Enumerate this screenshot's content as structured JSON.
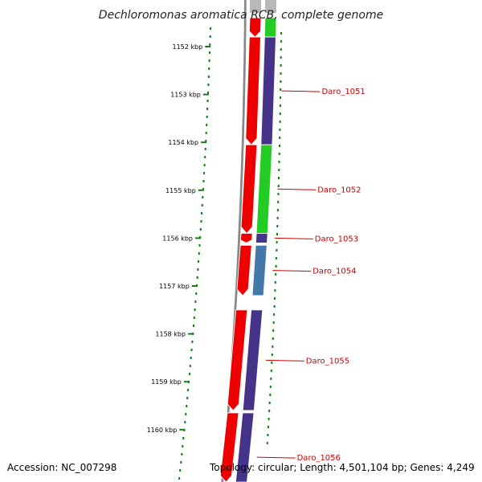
{
  "title": "Dechloromonas aromatica RCB, complete genome",
  "footer": {
    "accession": "Accession: NC_007298",
    "topology": "Topology: circular; Length: 4,501,104 bp; Genes: 4,249"
  },
  "colors": {
    "forward_strand": "#ee0000",
    "cog_green": "#22cc22",
    "cog_navy": "#443388",
    "cog_steel": "#4477aa",
    "ruler": "#1a7a1a",
    "label": "#cc0000",
    "backbone": "#888888"
  },
  "ticks": [
    {
      "label": "1152 kbp",
      "kbp": 1152
    },
    {
      "label": "1153 kbp",
      "kbp": 1153
    },
    {
      "label": "1154 kbp",
      "kbp": 1154
    },
    {
      "label": "1155 kbp",
      "kbp": 1155
    },
    {
      "label": "1156 kbp",
      "kbp": 1156
    },
    {
      "label": "1157 kbp",
      "kbp": 1157
    },
    {
      "label": "1158 kbp",
      "kbp": 1158
    },
    {
      "label": "1159 kbp",
      "kbp": 1159
    },
    {
      "label": "1160 kbp",
      "kbp": 1160
    }
  ],
  "genes": [
    {
      "name": "",
      "start": 1151.4,
      "end": 1151.8,
      "cog": "cog_green"
    },
    {
      "name": "Daro_1051",
      "start": 1151.8,
      "end": 1154.05,
      "cog": "cog_navy"
    },
    {
      "name": "Daro_1052",
      "start": 1154.05,
      "end": 1155.9,
      "cog": "cog_green"
    },
    {
      "name": "Daro_1053",
      "start": 1155.9,
      "end": 1156.1,
      "cog": "cog_navy"
    },
    {
      "name": "Daro_1054",
      "start": 1156.15,
      "end": 1157.2,
      "cog": "cog_steel"
    },
    {
      "name": "Daro_1055",
      "start": 1157.5,
      "end": 1159.6,
      "cog": "cog_navy"
    },
    {
      "name": "Daro_1056",
      "start": 1159.65,
      "end": 1161.5,
      "cog": "cog_navy"
    }
  ]
}
